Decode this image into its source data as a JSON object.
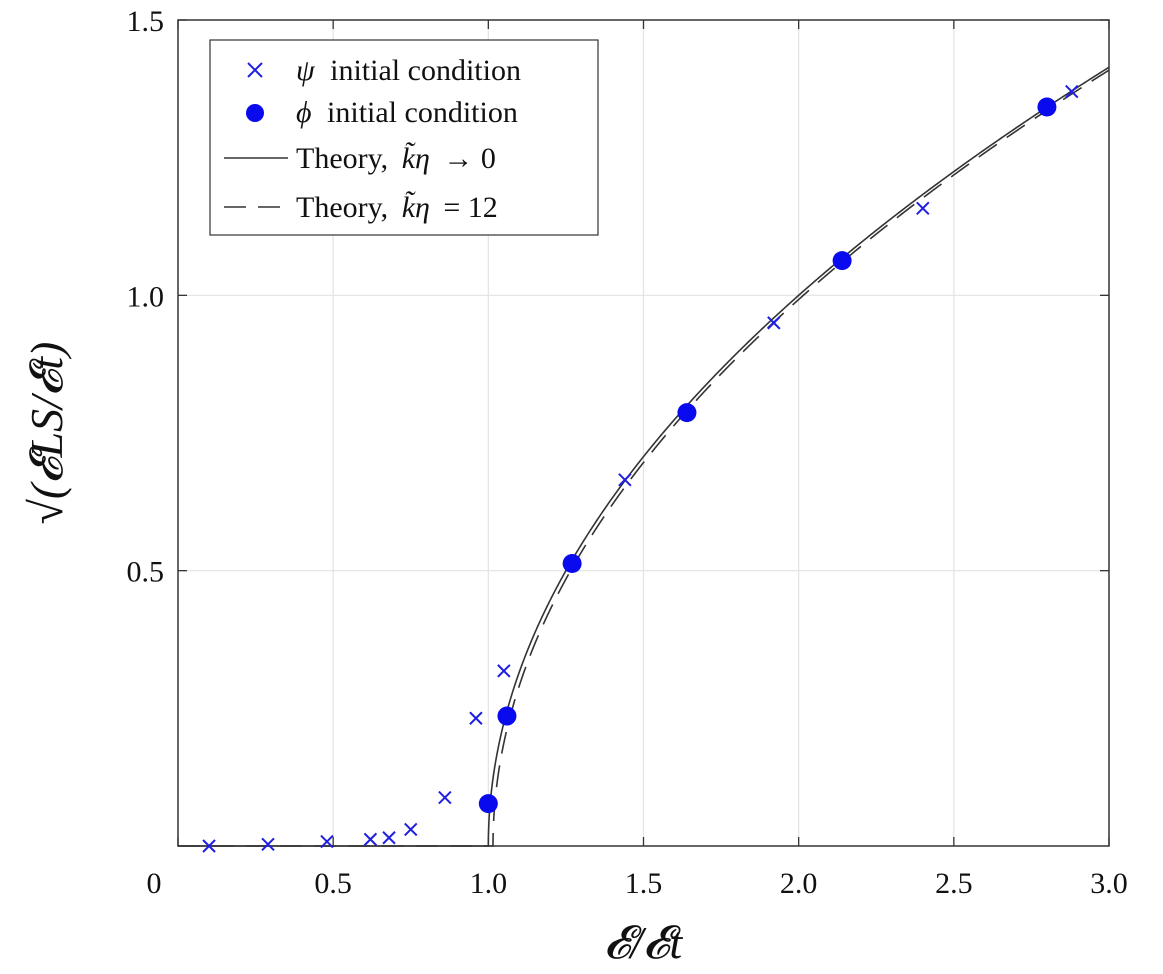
{
  "chart_data": {
    "type": "scatter",
    "title": "",
    "xlabel": "𝓔/𝓔t",
    "ylabel": "√(𝓔LS/𝓔t)",
    "xlim": [
      0,
      3.0
    ],
    "ylim": [
      0,
      1.5
    ],
    "grid": true,
    "legend_position": "top-left",
    "x_ticks": [
      {
        "value": 0,
        "label": "0"
      },
      {
        "value": 0.5,
        "label": "0.5"
      },
      {
        "value": 1.0,
        "label": "1.0"
      },
      {
        "value": 1.5,
        "label": "1.5"
      },
      {
        "value": 2.0,
        "label": "2.0"
      },
      {
        "value": 2.5,
        "label": "2.5"
      },
      {
        "value": 3.0,
        "label": "3.0"
      }
    ],
    "y_ticks": [
      {
        "value": 0.5,
        "label": "0.5"
      },
      {
        "value": 1.0,
        "label": "1.0"
      },
      {
        "value": 1.5,
        "label": "1.5"
      }
    ],
    "series": [
      {
        "name": "ψ initial condition",
        "marker": "x",
        "color": "#1f1fe0",
        "x": [
          0.1,
          0.29,
          0.48,
          0.62,
          0.68,
          0.75,
          0.86,
          0.96,
          1.05,
          1.44,
          1.92,
          2.4,
          2.88
        ],
        "y": [
          0.0,
          0.003,
          0.008,
          0.012,
          0.015,
          0.03,
          0.088,
          0.232,
          0.318,
          0.665,
          0.95,
          1.158,
          1.37
        ]
      },
      {
        "name": "ϕ initial condition",
        "marker": "circle",
        "color": "#0a0aee",
        "x": [
          1.0,
          1.06,
          1.27,
          1.64,
          2.14,
          2.8
        ],
        "y": [
          0.077,
          0.236,
          0.513,
          0.787,
          1.063,
          1.342
        ]
      },
      {
        "name": "Theory, k̃η → 0",
        "line": "solid",
        "color": "#333333",
        "model": "sqrt(x-1)",
        "x0": 1.0
      },
      {
        "name": "Theory, k̃η = 12",
        "line": "dashed",
        "color": "#333333",
        "model": "sqrt(x-x0)",
        "x0": 1.015
      }
    ],
    "legend": [
      {
        "label_main": "initial condition",
        "symbol": "ψ"
      },
      {
        "label_main": "initial condition",
        "symbol": "ϕ"
      },
      {
        "label_main": "Theory,",
        "symbol": "k̃η",
        "suffix": "→ 0"
      },
      {
        "label_main": "Theory,",
        "symbol": "k̃η",
        "suffix": "= 12"
      }
    ]
  }
}
